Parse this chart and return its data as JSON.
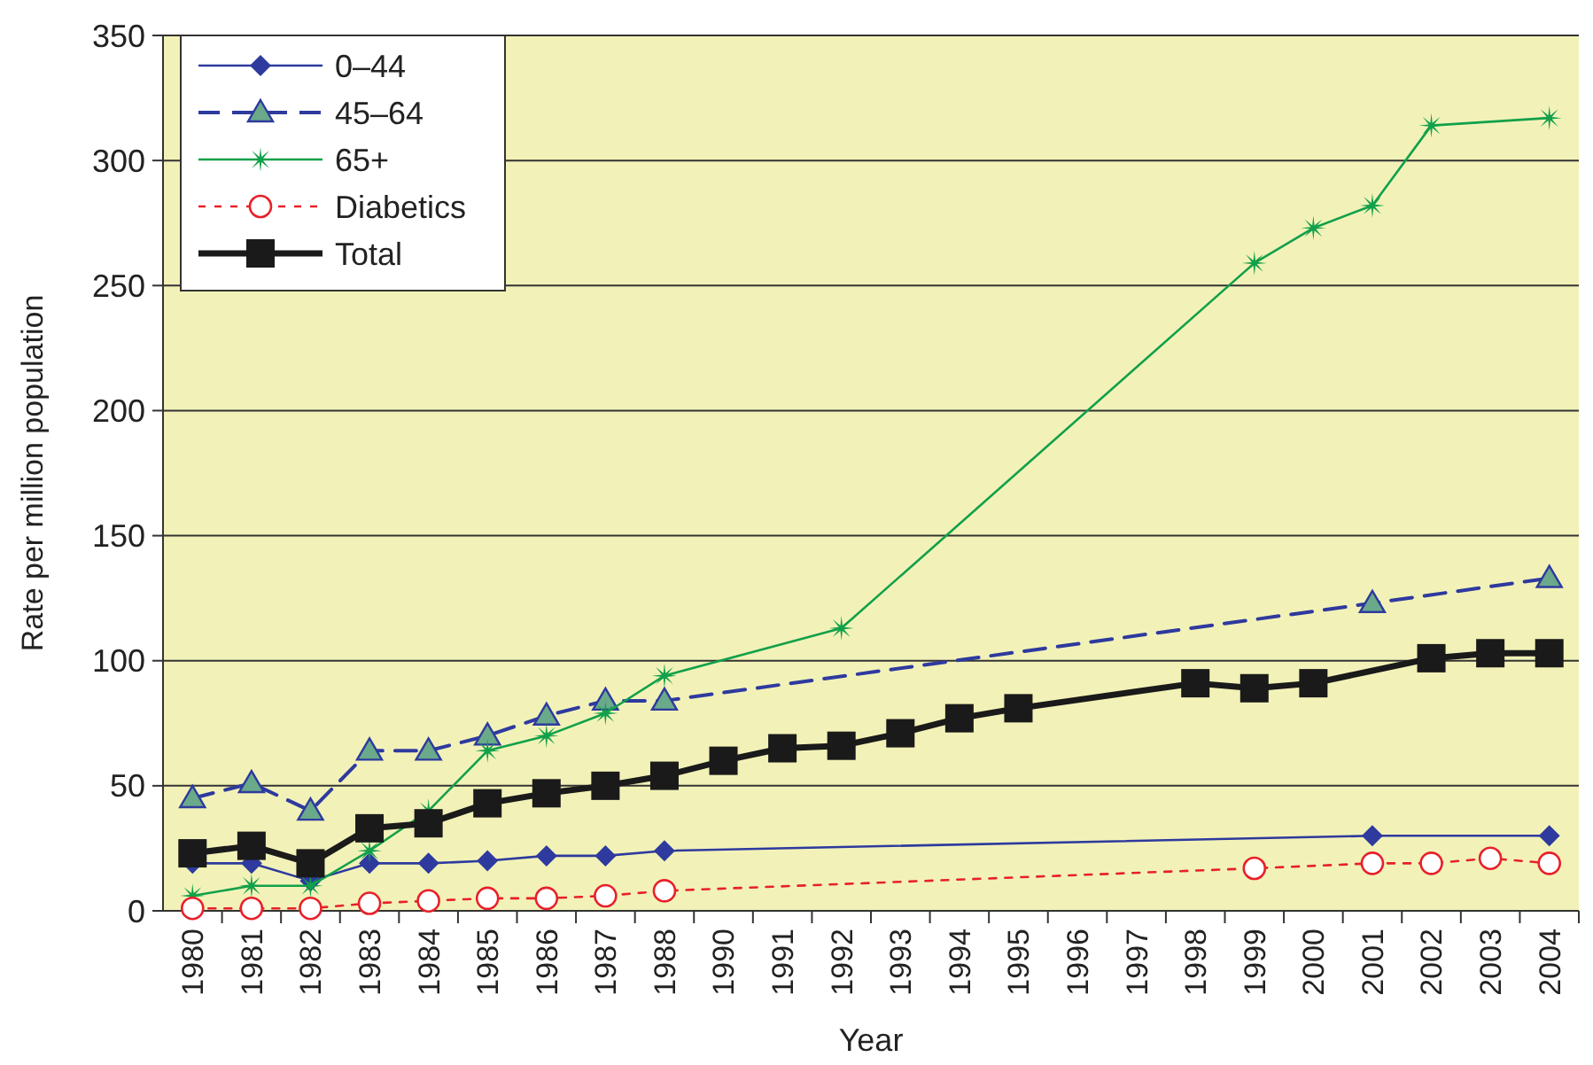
{
  "chart_data": {
    "type": "line",
    "xlabel": "Year",
    "ylabel": "Rate per million population",
    "categories": [
      "1980",
      "1981",
      "1982",
      "1983",
      "1984",
      "1985",
      "1986",
      "1987",
      "1988",
      "1990",
      "1991",
      "1992",
      "1993",
      "1994",
      "1995",
      "1996",
      "1997",
      "1998",
      "1999",
      "2000",
      "2001",
      "2002",
      "2003",
      "2004"
    ],
    "ylim": [
      0,
      350
    ],
    "yticks": [
      0,
      50,
      100,
      150,
      200,
      250,
      300,
      350
    ],
    "grid": "y",
    "legend": "top left",
    "series": [
      {
        "name": "0–44",
        "color": "#2e3a9e",
        "marker": "diamond",
        "line_style": "solid",
        "values": [
          19,
          19,
          12,
          19,
          19,
          20,
          22,
          22,
          24,
          null,
          null,
          null,
          null,
          null,
          null,
          null,
          null,
          null,
          null,
          null,
          30,
          null,
          null,
          30
        ]
      },
      {
        "name": "45–64",
        "color": "#2e3a9e",
        "marker": "triangle",
        "line_style": "dashed",
        "values": [
          45,
          51,
          40,
          64,
          64,
          70,
          78,
          84,
          84,
          null,
          null,
          null,
          null,
          null,
          null,
          null,
          null,
          null,
          null,
          null,
          123,
          null,
          null,
          133
        ]
      },
      {
        "name": "65+",
        "color": "#12a04a",
        "marker": "star",
        "line_style": "solid",
        "values": [
          6,
          10,
          10,
          24,
          40,
          64,
          70,
          79,
          94,
          null,
          null,
          113,
          null,
          null,
          null,
          null,
          null,
          null,
          259,
          273,
          282,
          314,
          null,
          317
        ]
      },
      {
        "name": "Diabetics",
        "color": "#e8202a",
        "marker": "circle",
        "line_style": "dotted",
        "values": [
          1,
          1,
          1,
          3,
          4,
          5,
          5,
          6,
          8,
          null,
          null,
          null,
          null,
          null,
          null,
          null,
          null,
          null,
          17,
          null,
          19,
          19,
          21,
          19
        ]
      },
      {
        "name": "Total",
        "color": "#1a1a1a",
        "marker": "square",
        "line_style": "solid",
        "values": [
          23,
          26,
          19,
          33,
          35,
          43,
          47,
          50,
          54,
          60,
          65,
          66,
          71,
          77,
          81,
          null,
          null,
          91,
          89,
          91,
          null,
          101,
          103,
          103
        ]
      }
    ]
  }
}
